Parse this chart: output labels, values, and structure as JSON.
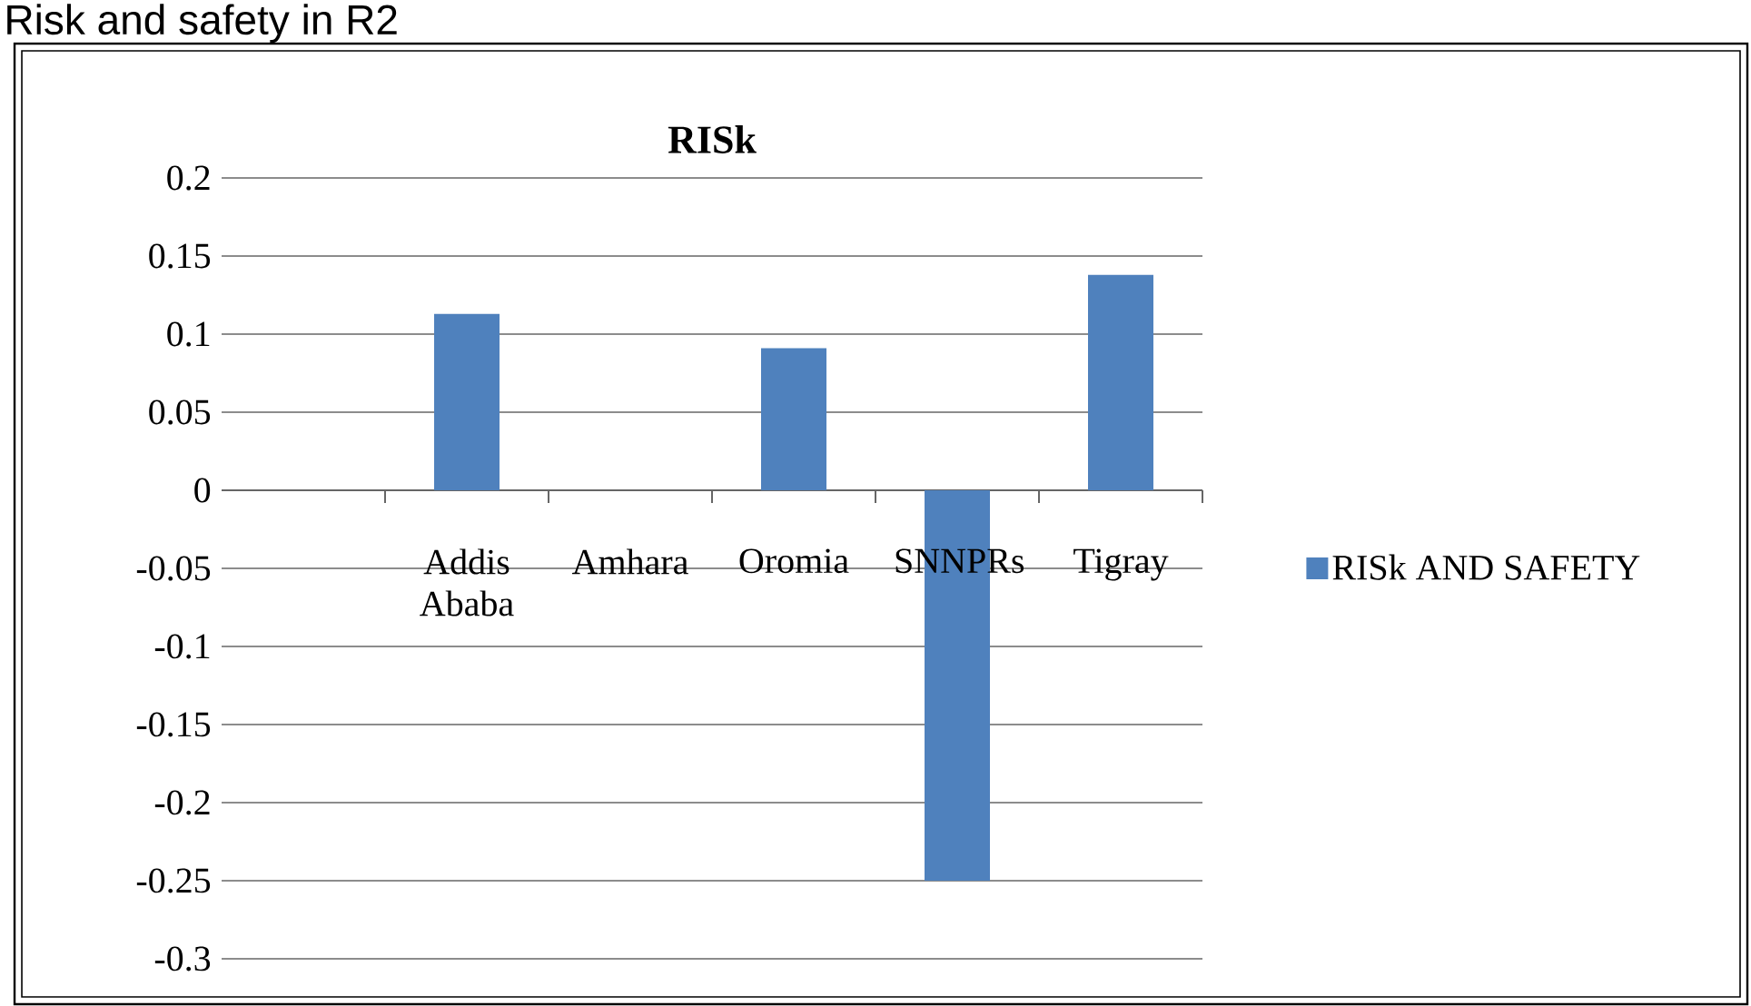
{
  "chart_data": {
    "type": "bar",
    "title": "RISk",
    "annotations": [
      "Risk and safety in R2"
    ],
    "categories": [
      null,
      "Addis Ababa",
      "Amhara",
      "Oromia",
      "SNNPRs",
      "Tigray"
    ],
    "series": [
      {
        "name": "RISk AND SAFETY",
        "color": "#4f81bd",
        "values": [
          null,
          0.113,
          null,
          0.091,
          -0.25,
          0.138
        ]
      }
    ],
    "ylim": [
      -0.3,
      0.2
    ],
    "yticks": [
      -0.3,
      -0.25,
      -0.2,
      -0.15,
      -0.1,
      -0.05,
      0,
      0.05,
      0.1,
      0.15,
      0.2
    ],
    "grid": "y",
    "legend": "right"
  }
}
